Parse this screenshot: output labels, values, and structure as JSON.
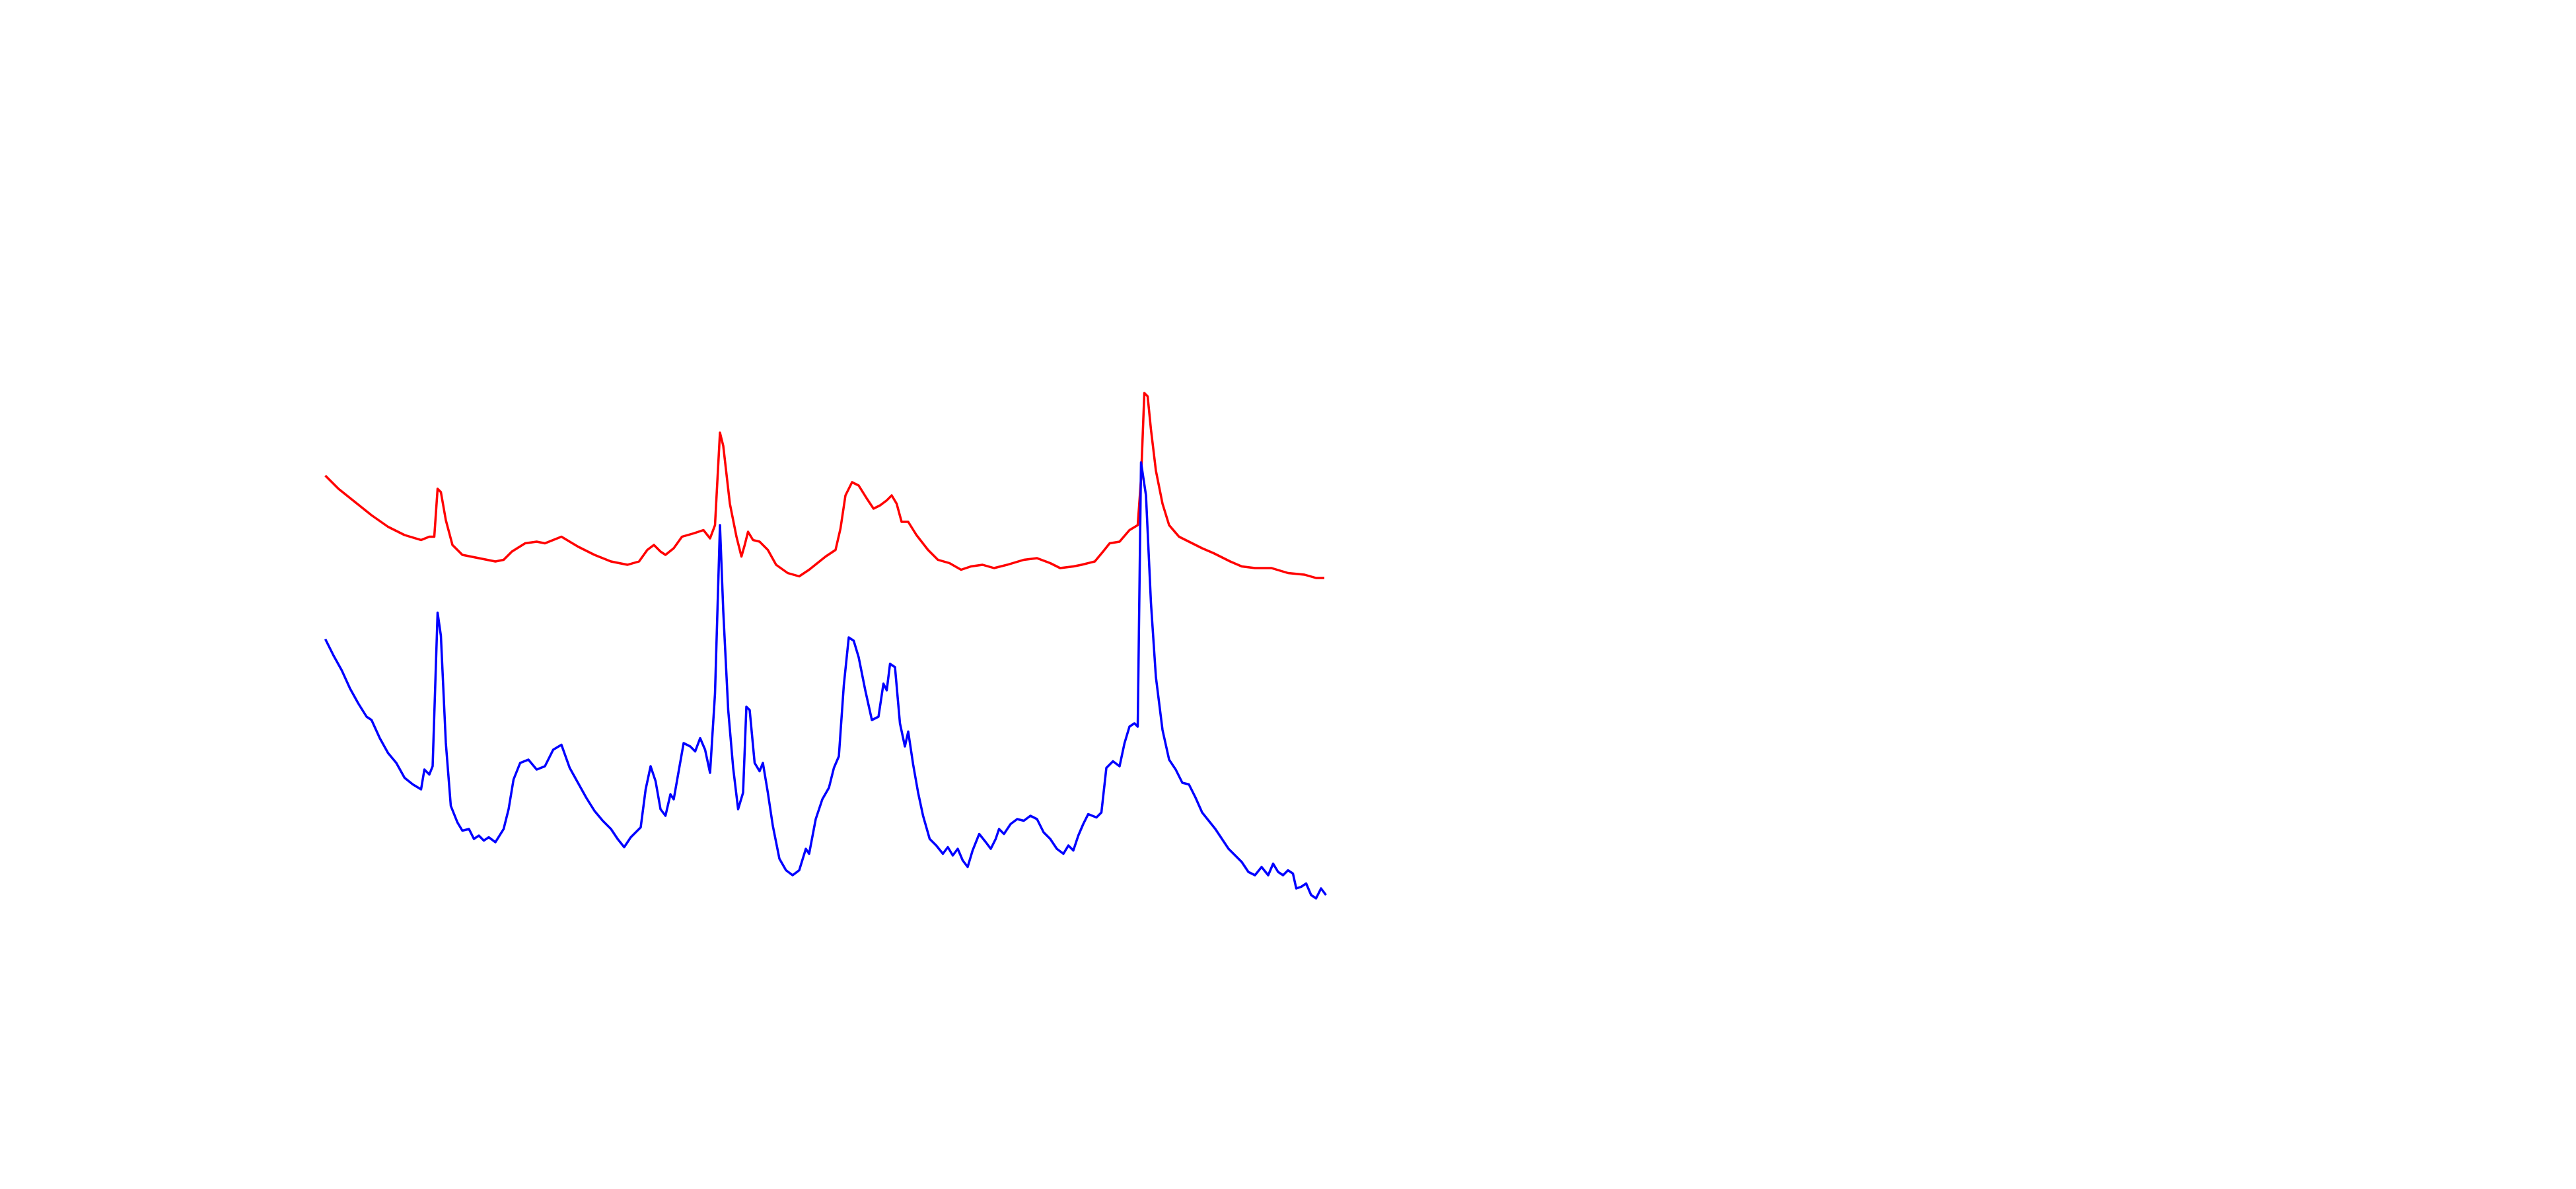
{
  "chart_data": {
    "type": "line",
    "xlim": [
      0,
      1560
    ],
    "ylim": [
      0,
      720
    ],
    "series": [
      {
        "color": "#ff0000",
        "x": [
          197,
          205,
          215,
          225,
          235,
          245,
          255,
          260,
          263,
          265,
          267,
          270,
          274,
          280,
          290,
          300,
          305,
          310,
          318,
          325,
          330,
          340,
          350,
          360,
          370,
          380,
          387,
          392,
          396,
          400,
          403,
          408,
          413,
          420,
          426,
          430,
          433,
          436,
          438,
          442,
          446,
          449,
          451,
          453,
          456,
          460,
          465,
          470,
          477,
          484,
          490,
          495,
          500,
          506,
          509,
          512,
          516,
          520,
          525,
          529,
          533,
          537,
          540,
          543,
          546,
          550,
          555,
          562,
          568,
          575,
          582,
          588,
          595,
          602,
          610,
          620,
          628,
          636,
          642,
          650,
          655,
          663,
          668,
          672,
          678,
          684,
          689,
          691,
          693,
          695,
          697,
          700,
          704,
          708,
          714,
          720,
          728,
          735,
          745,
          752,
          760,
          770,
          780,
          790,
          797,
          802
        ],
        "values": [
          432,
          424,
          416,
          408,
          401,
          396,
          393,
          395,
          395,
          424,
          422,
          405,
          390,
          384,
          382,
          380,
          381,
          386,
          391,
          392,
          391,
          395,
          389,
          384,
          380,
          378,
          380,
          387,
          390,
          386,
          384,
          388,
          395,
          397,
          399,
          394,
          402,
          458,
          450,
          415,
          395,
          383,
          390,
          398,
          393,
          392,
          387,
          378,
          373,
          371,
          375,
          379,
          383,
          387,
          400,
          420,
          428,
          426,
          418,
          412,
          414,
          417,
          420,
          415,
          404,
          404,
          396,
          387,
          381,
          379,
          375,
          377,
          378,
          376,
          378,
          381,
          382,
          379,
          376,
          377,
          378,
          380,
          386,
          391,
          392,
          399,
          402,
          430,
          482,
          480,
          460,
          435,
          415,
          402,
          395,
          392,
          388,
          385,
          380,
          377,
          376,
          376,
          373,
          372,
          370,
          370
        ]
      },
      {
        "color": "#0000ff",
        "x": [
          197,
          202,
          207,
          212,
          217,
          222,
          225,
          230,
          235,
          240,
          245,
          250,
          255,
          257,
          260,
          262,
          265,
          267,
          270,
          273,
          277,
          280,
          284,
          287,
          290,
          293,
          296,
          300,
          305,
          308,
          311,
          315,
          320,
          325,
          330,
          335,
          340,
          345,
          350,
          355,
          360,
          365,
          370,
          374,
          378,
          382,
          385,
          388,
          391,
          394,
          397,
          400,
          403,
          406,
          408,
          411,
          414,
          418,
          421,
          424,
          427,
          430,
          433,
          436,
          438,
          441,
          444,
          447,
          450,
          452,
          454,
          457,
          460,
          462,
          465,
          468,
          472,
          476,
          480,
          484,
          488,
          490,
          494,
          498,
          502,
          505,
          508,
          511,
          514,
          517,
          520,
          524,
          528,
          532,
          535,
          537,
          539,
          542,
          545,
          548,
          550,
          553,
          556,
          559,
          563,
          567,
          571,
          574,
          577,
          580,
          583,
          586,
          589,
          593,
          597,
          600,
          603,
          605,
          608,
          612,
          616,
          620,
          624,
          628,
          632,
          636,
          640,
          644,
          647,
          650,
          653,
          656,
          659,
          664,
          667,
          670,
          674,
          678,
          681,
          684,
          687,
          689,
          691,
          694,
          697,
          700,
          704,
          708,
          712,
          716,
          720,
          724,
          728,
          732,
          736,
          740,
          744,
          748,
          752,
          756,
          760,
          764,
          768,
          771,
          774,
          777,
          780,
          783,
          785,
          788,
          791,
          794,
          797,
          800,
          803
        ],
        "values": [
          333,
          323,
          314,
          303,
          294,
          286,
          284,
          273,
          264,
          258,
          249,
          245,
          242,
          254,
          251,
          256,
          349,
          335,
          270,
          232,
          222,
          217,
          218,
          212,
          214,
          211,
          213,
          210,
          218,
          230,
          248,
          258,
          260,
          254,
          256,
          266,
          269,
          255,
          246,
          237,
          229,
          223,
          218,
          212,
          207,
          213,
          216,
          219,
          242,
          256,
          247,
          230,
          226,
          239,
          236,
          253,
          270,
          268,
          265,
          273,
          266,
          252,
          300,
          402,
          350,
          290,
          255,
          230,
          240,
          292,
          290,
          258,
          253,
          258,
          240,
          220,
          200,
          193,
          190,
          193,
          206,
          203,
          224,
          236,
          243,
          255,
          262,
          305,
          334,
          332,
          322,
          302,
          284,
          286,
          306,
          302,
          318,
          316,
          282,
          268,
          277,
          257,
          240,
          226,
          212,
          208,
          203,
          207,
          202,
          206,
          199,
          195,
          205,
          215,
          210,
          206,
          212,
          218,
          215,
          221,
          224,
          223,
          226,
          224,
          216,
          212,
          206,
          203,
          208,
          205,
          214,
          221,
          227,
          225,
          228,
          255,
          259,
          256,
          270,
          280,
          282,
          280,
          440,
          420,
          355,
          310,
          278,
          260,
          254,
          246,
          245,
          237,
          228,
          223,
          218,
          212,
          206,
          202,
          198,
          192,
          190,
          195,
          190,
          197,
          192,
          190,
          193,
          191,
          182,
          183,
          185,
          178,
          176,
          182,
          178
        ]
      }
    ]
  }
}
